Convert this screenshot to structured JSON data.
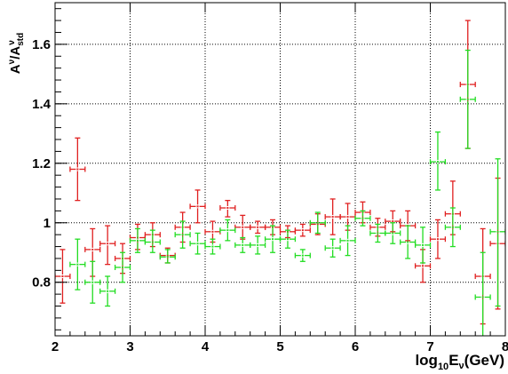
{
  "chart_data": {
    "type": "scatter",
    "title": "",
    "xlabel": {
      "base": "log",
      "sub": "10",
      "main": "E",
      "nu_sub": "ν",
      "unit": "(GeV)"
    },
    "ylabel": {
      "a": "A",
      "nu_sup": "ν",
      "slash": "/A",
      "std_sub": "std",
      "nu_sup2": "ν"
    },
    "xlim": [
      2,
      8
    ],
    "ylim": [
      0.62,
      1.74
    ],
    "x_ticks": [
      "2",
      "3",
      "4",
      "5",
      "6",
      "7",
      "8"
    ],
    "y_ticks": [
      "0.8",
      "1",
      "1.2",
      "1.4",
      "1.6"
    ],
    "grid": true,
    "series": [
      {
        "color": "#e02020",
        "x_halfwidth": 0.1,
        "points": [
          {
            "x": 2.1,
            "y": 0.82,
            "lo": 0.73,
            "hi": 0.91
          },
          {
            "x": 2.3,
            "y": 1.18,
            "lo": 1.075,
            "hi": 1.285
          },
          {
            "x": 2.5,
            "y": 0.91,
            "lo": 0.82,
            "hi": 0.98
          },
          {
            "x": 2.7,
            "y": 0.93,
            "lo": 0.86,
            "hi": 0.99
          },
          {
            "x": 2.9,
            "y": 0.88,
            "lo": 0.83,
            "hi": 0.93
          },
          {
            "x": 3.1,
            "y": 0.95,
            "lo": 0.91,
            "hi": 0.995
          },
          {
            "x": 3.3,
            "y": 0.96,
            "lo": 0.92,
            "hi": 1.0
          },
          {
            "x": 3.5,
            "y": 0.89,
            "lo": 0.865,
            "hi": 0.915
          },
          {
            "x": 3.7,
            "y": 0.985,
            "lo": 0.935,
            "hi": 1.035
          },
          {
            "x": 3.9,
            "y": 1.055,
            "lo": 1.0,
            "hi": 1.11
          },
          {
            "x": 4.1,
            "y": 0.97,
            "lo": 0.935,
            "hi": 1.005
          },
          {
            "x": 4.3,
            "y": 1.05,
            "lo": 1.02,
            "hi": 1.075
          },
          {
            "x": 4.5,
            "y": 0.985,
            "lo": 0.945,
            "hi": 1.025
          },
          {
            "x": 4.7,
            "y": 0.985,
            "lo": 0.965,
            "hi": 1.005
          },
          {
            "x": 4.9,
            "y": 0.985,
            "lo": 0.96,
            "hi": 1.01
          },
          {
            "x": 5.1,
            "y": 0.97,
            "lo": 0.95,
            "hi": 0.99
          },
          {
            "x": 5.3,
            "y": 0.975,
            "lo": 0.955,
            "hi": 0.995
          },
          {
            "x": 5.5,
            "y": 0.995,
            "lo": 0.96,
            "hi": 1.03
          },
          {
            "x": 5.7,
            "y": 1.02,
            "lo": 0.96,
            "hi": 1.08
          },
          {
            "x": 5.9,
            "y": 1.02,
            "lo": 0.975,
            "hi": 1.065
          },
          {
            "x": 6.1,
            "y": 1.035,
            "lo": 1.0,
            "hi": 1.07
          },
          {
            "x": 6.3,
            "y": 0.985,
            "lo": 0.955,
            "hi": 1.015
          },
          {
            "x": 6.5,
            "y": 1.005,
            "lo": 0.97,
            "hi": 1.04
          },
          {
            "x": 6.7,
            "y": 0.99,
            "lo": 0.94,
            "hi": 1.04
          },
          {
            "x": 6.9,
            "y": 0.855,
            "lo": 0.8,
            "hi": 0.91
          },
          {
            "x": 7.1,
            "y": 0.945,
            "lo": 0.88,
            "hi": 1.01
          },
          {
            "x": 7.3,
            "y": 1.03,
            "lo": 0.96,
            "hi": 1.14
          },
          {
            "x": 7.5,
            "y": 1.465,
            "lo": 1.25,
            "hi": 1.68
          },
          {
            "x": 7.7,
            "y": 0.82,
            "lo": 0.66,
            "hi": 0.98
          },
          {
            "x": 7.9,
            "y": 0.93,
            "lo": 0.71,
            "hi": 1.15
          }
        ]
      },
      {
        "color": "#22dd22",
        "x_halfwidth": 0.1,
        "points": [
          {
            "x": 2.3,
            "y": 0.86,
            "lo": 0.775,
            "hi": 0.945
          },
          {
            "x": 2.5,
            "y": 0.8,
            "lo": 0.73,
            "hi": 0.87
          },
          {
            "x": 2.7,
            "y": 0.77,
            "lo": 0.72,
            "hi": 0.82
          },
          {
            "x": 2.9,
            "y": 0.85,
            "lo": 0.8,
            "hi": 0.9
          },
          {
            "x": 3.1,
            "y": 0.94,
            "lo": 0.9,
            "hi": 0.98
          },
          {
            "x": 3.3,
            "y": 0.935,
            "lo": 0.9,
            "hi": 0.975
          },
          {
            "x": 3.5,
            "y": 0.885,
            "lo": 0.865,
            "hi": 0.91
          },
          {
            "x": 3.7,
            "y": 0.96,
            "lo": 0.915,
            "hi": 1.005
          },
          {
            "x": 3.9,
            "y": 0.93,
            "lo": 0.895,
            "hi": 0.965
          },
          {
            "x": 4.1,
            "y": 0.92,
            "lo": 0.895,
            "hi": 0.945
          },
          {
            "x": 4.3,
            "y": 0.975,
            "lo": 0.94,
            "hi": 1.01
          },
          {
            "x": 4.5,
            "y": 0.925,
            "lo": 0.9,
            "hi": 0.95
          },
          {
            "x": 4.7,
            "y": 0.925,
            "lo": 0.895,
            "hi": 0.955
          },
          {
            "x": 4.9,
            "y": 0.945,
            "lo": 0.9,
            "hi": 0.99
          },
          {
            "x": 5.1,
            "y": 0.945,
            "lo": 0.915,
            "hi": 0.975
          },
          {
            "x": 5.3,
            "y": 0.89,
            "lo": 0.87,
            "hi": 0.91
          },
          {
            "x": 5.5,
            "y": 1.0,
            "lo": 0.965,
            "hi": 1.035
          },
          {
            "x": 5.7,
            "y": 0.915,
            "lo": 0.885,
            "hi": 0.945
          },
          {
            "x": 5.9,
            "y": 0.94,
            "lo": 0.89,
            "hi": 0.99
          },
          {
            "x": 6.1,
            "y": 1.015,
            "lo": 0.99,
            "hi": 1.04
          },
          {
            "x": 6.3,
            "y": 0.965,
            "lo": 0.935,
            "hi": 0.995
          },
          {
            "x": 6.5,
            "y": 0.965,
            "lo": 0.93,
            "hi": 1.0
          },
          {
            "x": 6.7,
            "y": 0.935,
            "lo": 0.88,
            "hi": 0.99
          },
          {
            "x": 6.9,
            "y": 0.925,
            "lo": 0.865,
            "hi": 0.985
          },
          {
            "x": 7.1,
            "y": 1.205,
            "lo": 1.11,
            "hi": 1.305
          },
          {
            "x": 7.3,
            "y": 0.985,
            "lo": 0.92,
            "hi": 1.05
          },
          {
            "x": 7.5,
            "y": 1.415,
            "lo": 1.25,
            "hi": 1.58
          },
          {
            "x": 7.7,
            "y": 0.75,
            "lo": 0.6,
            "hi": 0.9
          },
          {
            "x": 7.9,
            "y": 0.97,
            "lo": 0.72,
            "hi": 1.215
          }
        ]
      }
    ]
  }
}
